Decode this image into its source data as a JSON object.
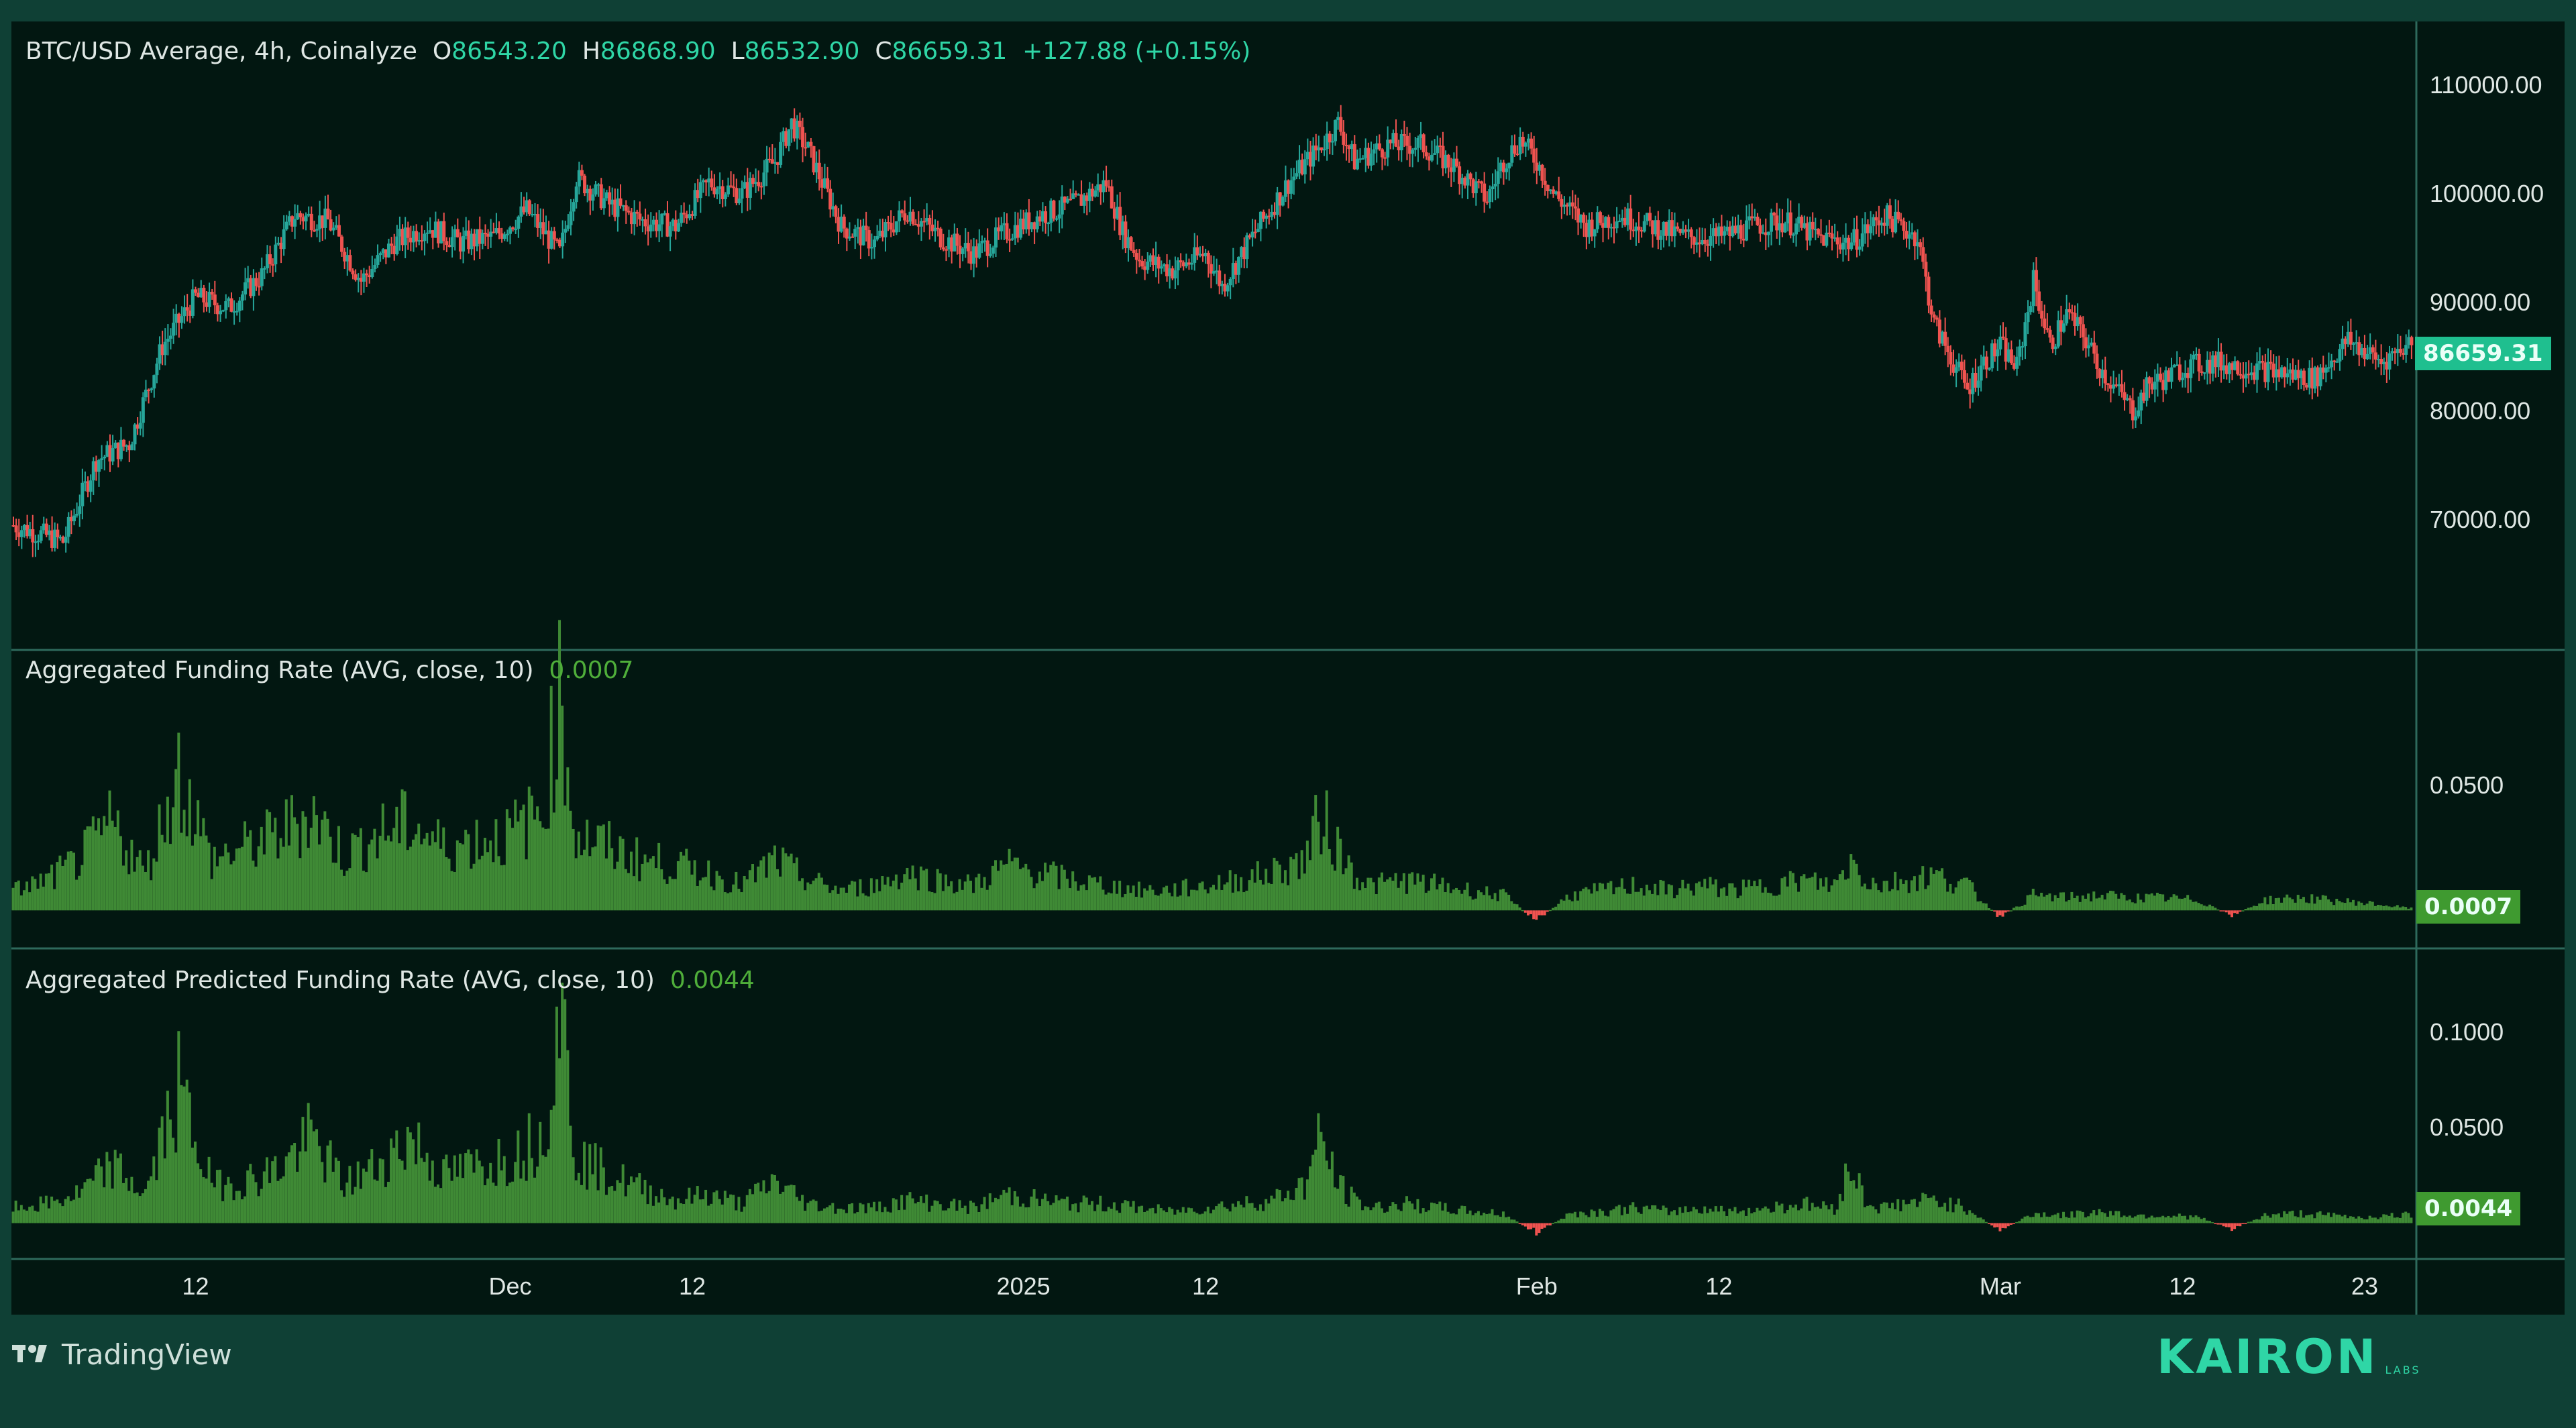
{
  "header": {
    "symbol": "BTC/USD Average, 4h, Coinalyze",
    "o_prefix": "O",
    "open": "86543.20",
    "h_prefix": "H",
    "high": "86868.90",
    "l_prefix": "L",
    "low": "86532.90",
    "c_prefix": "C",
    "close": "86659.31",
    "change": "+127.88 (+0.15%)"
  },
  "indicators": {
    "funding": {
      "label": "Aggregated Funding Rate (AVG, close, 10)",
      "value": "0.0007"
    },
    "predicted": {
      "label": "Aggregated Predicted Funding Rate (AVG, close, 10)",
      "value": "0.0044"
    }
  },
  "badges": {
    "price": "86659.31",
    "funding": "0.0007",
    "predicted": "0.0044"
  },
  "footer": {
    "tradingview": "TradingView",
    "brand": "KAIRON",
    "brand_sub": "LABS"
  },
  "colors": {
    "background": "#021711",
    "frame": "#0f4035",
    "up": "#26a69a",
    "down": "#ef5350",
    "funding_bar": "#3f8a35",
    "accent": "#2fd6a6"
  },
  "chart_data": [
    {
      "type": "line",
      "title": "BTC/USD Average, 4h, Coinalyze",
      "ylim": [
        60000,
        114000
      ],
      "y_ticks": [
        "110000.00",
        "100000.00",
        "90000.00",
        "80000.00",
        "70000.00"
      ],
      "y_tick_values": [
        110000,
        100000,
        90000,
        80000,
        70000
      ],
      "x_ticks": [
        "12",
        "Dec",
        "12",
        "2025",
        "12",
        "Feb",
        "12",
        "Mar",
        "12",
        "23"
      ],
      "x_tick_days": [
        11,
        30,
        41,
        61,
        72,
        92,
        103,
        120,
        131,
        142
      ],
      "x_days_range": [
        0,
        145
      ],
      "x_note": "days counted from Nov 1 2024",
      "series": [
        {
          "name": "BTC/USD Average",
          "x_days": [
            0,
            3,
            5,
            7,
            9,
            11,
            13,
            15,
            17,
            19,
            21,
            23,
            25,
            27,
            29,
            31,
            33,
            34,
            36,
            38,
            40,
            42,
            44,
            46,
            47,
            48,
            50,
            52,
            54,
            56,
            58,
            60,
            62,
            64,
            66,
            67,
            68,
            70,
            72,
            73,
            75,
            77,
            79,
            80,
            81,
            83,
            85,
            87,
            89,
            90,
            91,
            92,
            93,
            95,
            97,
            99,
            101,
            103,
            105,
            107,
            109,
            111,
            113,
            115,
            116,
            117,
            118,
            119,
            120,
            121,
            122,
            123,
            124,
            125,
            126,
            127,
            128,
            129,
            130,
            131,
            133,
            135,
            137,
            139,
            141,
            143,
            145
          ],
          "values": [
            69500,
            68000,
            75500,
            77000,
            86000,
            90500,
            89500,
            92500,
            98000,
            97500,
            92000,
            95500,
            97000,
            95500,
            96000,
            98500,
            94500,
            101500,
            99000,
            97500,
            97000,
            101000,
            100000,
            103000,
            106500,
            104000,
            97000,
            95500,
            98500,
            96000,
            94500,
            96500,
            98000,
            99000,
            101000,
            96500,
            94000,
            93000,
            94500,
            91500,
            96500,
            101000,
            104500,
            106500,
            103000,
            104500,
            104500,
            102500,
            99500,
            103000,
            105000,
            103000,
            100000,
            97000,
            98000,
            97000,
            96000,
            96000,
            97000,
            97500,
            96000,
            95500,
            98000,
            96000,
            88000,
            85000,
            82000,
            84500,
            86000,
            84000,
            92000,
            86000,
            89000,
            87000,
            84000,
            82000,
            80000,
            82500,
            83000,
            84000,
            84500,
            84000,
            83500,
            83000,
            86500,
            84500,
            86659.31
          ]
        }
      ]
    },
    {
      "type": "bar",
      "title": "Aggregated Funding Rate (AVG, close, 10)",
      "ylim": [
        -0.012,
        0.09
      ],
      "y_ticks": [
        "0.0500"
      ],
      "y_tick_values": [
        0.05
      ],
      "series": [
        {
          "name": "Aggregated Funding Rate",
          "x_days": [
            0,
            2,
            4,
            6,
            8,
            10,
            12,
            14,
            16,
            18,
            20,
            22,
            24,
            26,
            28,
            30,
            32,
            33,
            34,
            36,
            38,
            40,
            42,
            44,
            46,
            48,
            50,
            52,
            54,
            56,
            58,
            60,
            62,
            64,
            66,
            68,
            70,
            72,
            74,
            76,
            78,
            79,
            80,
            81,
            82,
            84,
            86,
            88,
            90,
            92,
            94,
            96,
            98,
            100,
            102,
            104,
            106,
            108,
            110,
            111,
            112,
            113,
            114,
            116,
            118,
            120,
            122,
            124,
            126,
            128,
            130,
            132,
            134,
            136,
            138,
            140,
            142,
            145
          ],
          "values": [
            0.008,
            0.012,
            0.02,
            0.035,
            0.015,
            0.055,
            0.02,
            0.025,
            0.03,
            0.04,
            0.022,
            0.03,
            0.035,
            0.025,
            0.028,
            0.03,
            0.04,
            0.085,
            0.03,
            0.025,
            0.02,
            0.018,
            0.015,
            0.01,
            0.02,
            0.012,
            0.008,
            0.01,
            0.015,
            0.012,
            0.01,
            0.018,
            0.015,
            0.012,
            0.01,
            0.008,
            0.008,
            0.01,
            0.012,
            0.015,
            0.02,
            0.038,
            0.025,
            0.015,
            0.01,
            0.012,
            0.01,
            0.008,
            0.006,
            -0.004,
            0.006,
            0.008,
            0.01,
            0.008,
            0.01,
            0.008,
            0.01,
            0.012,
            0.01,
            0.02,
            0.012,
            0.01,
            0.012,
            0.014,
            0.01,
            -0.003,
            0.006,
            0.005,
            0.006,
            0.005,
            0.005,
            0.004,
            -0.002,
            0.004,
            0.005,
            0.004,
            0.003,
            0.0007
          ]
        }
      ]
    },
    {
      "type": "bar",
      "title": "Aggregated Predicted Funding Rate (AVG, close, 10)",
      "ylim": [
        -0.01,
        0.12
      ],
      "y_ticks": [
        "0.1000",
        "0.0500"
      ],
      "y_tick_values": [
        0.1,
        0.05
      ],
      "series": [
        {
          "name": "Aggregated Predicted Funding Rate",
          "x_days": [
            0,
            2,
            4,
            6,
            8,
            10,
            12,
            14,
            16,
            18,
            20,
            22,
            24,
            26,
            28,
            30,
            32,
            33,
            34,
            36,
            38,
            40,
            42,
            44,
            46,
            48,
            50,
            52,
            54,
            56,
            58,
            60,
            62,
            64,
            66,
            68,
            70,
            72,
            74,
            76,
            78,
            79,
            80,
            81,
            82,
            84,
            86,
            88,
            90,
            92,
            94,
            96,
            98,
            100,
            102,
            104,
            106,
            108,
            110,
            111,
            112,
            113,
            114,
            116,
            118,
            120,
            122,
            124,
            126,
            128,
            130,
            132,
            134,
            136,
            138,
            140,
            142,
            145
          ],
          "values": [
            0.008,
            0.01,
            0.015,
            0.03,
            0.015,
            0.07,
            0.02,
            0.022,
            0.028,
            0.045,
            0.02,
            0.03,
            0.045,
            0.025,
            0.03,
            0.035,
            0.045,
            0.12,
            0.035,
            0.025,
            0.018,
            0.012,
            0.015,
            0.01,
            0.022,
            0.01,
            0.008,
            0.008,
            0.012,
            0.01,
            0.008,
            0.015,
            0.012,
            0.01,
            0.01,
            0.008,
            0.006,
            0.008,
            0.01,
            0.012,
            0.02,
            0.045,
            0.02,
            0.012,
            0.008,
            0.01,
            0.008,
            0.006,
            0.005,
            -0.005,
            0.005,
            0.006,
            0.008,
            0.006,
            0.008,
            0.006,
            0.008,
            0.01,
            0.008,
            0.03,
            0.01,
            0.008,
            0.01,
            0.012,
            0.008,
            -0.004,
            0.005,
            0.004,
            0.006,
            0.004,
            0.004,
            0.003,
            -0.003,
            0.004,
            0.005,
            0.004,
            0.003,
            0.0044
          ]
        }
      ]
    }
  ]
}
